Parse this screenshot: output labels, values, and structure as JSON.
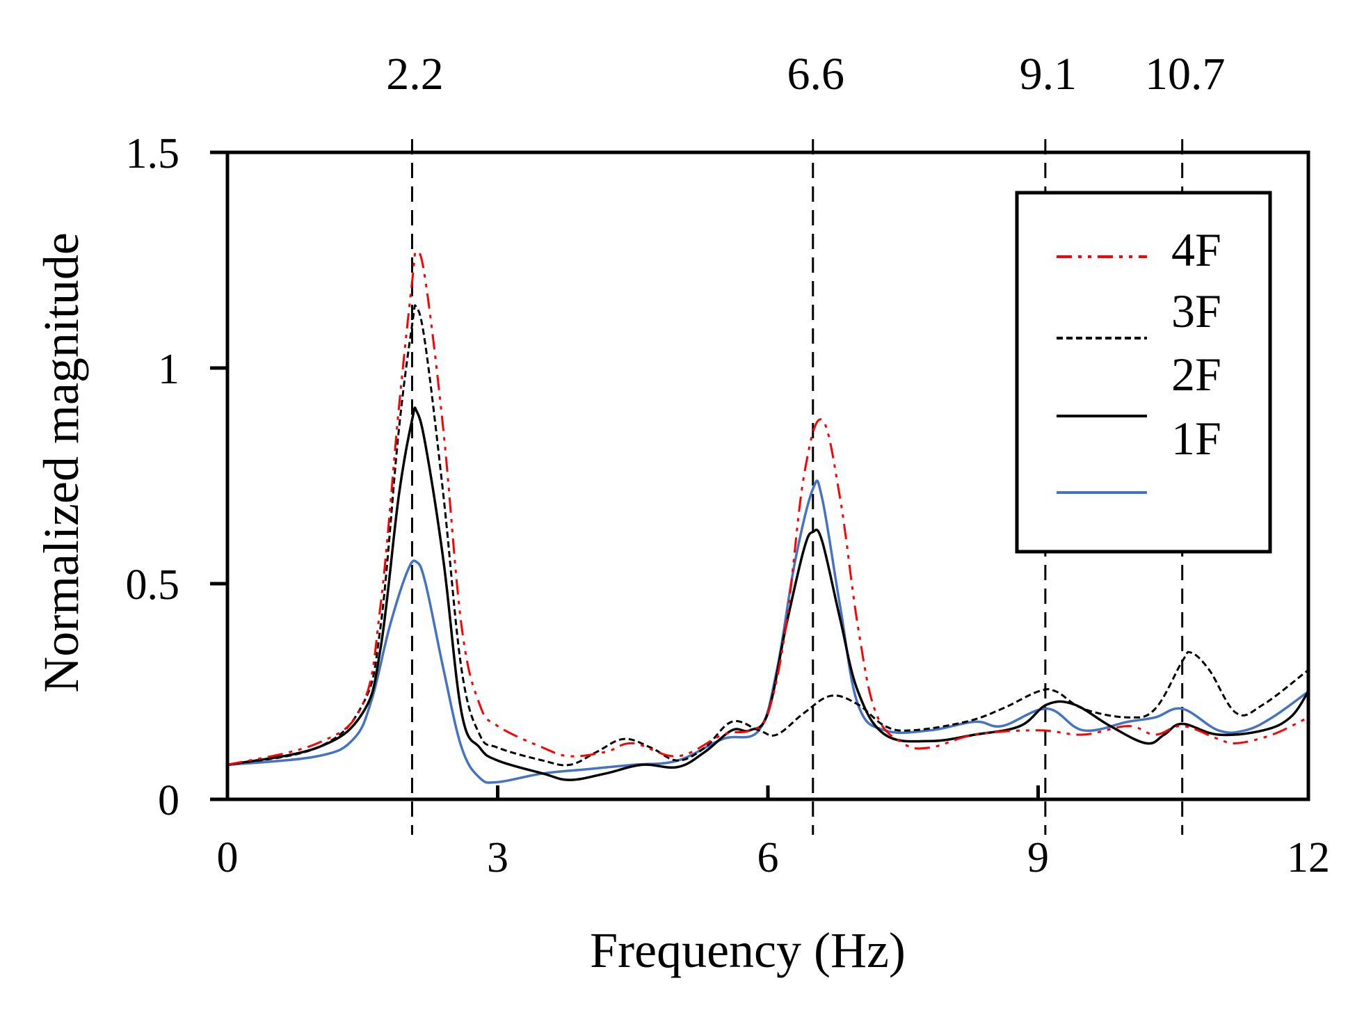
{
  "chart_data": {
    "type": "line",
    "title": "",
    "xlabel": "Frequency (Hz)",
    "ylabel": "Normalized magnitude",
    "xlim": [
      0,
      12
    ],
    "ylim": [
      0,
      1.5
    ],
    "xticks": [
      0,
      3,
      6,
      9,
      12
    ],
    "xtick_labels": [
      "0",
      "3",
      "6",
      "9",
      "12"
    ],
    "yticks": [
      0,
      0.5,
      1,
      1.5
    ],
    "ytick_labels": [
      "0",
      "0.5",
      "1",
      "1.5"
    ],
    "grid": false,
    "legend_position": "top-right",
    "reference_lines": [
      {
        "x": 2.05,
        "label": "2.2"
      },
      {
        "x": 6.5,
        "label": "6.6"
      },
      {
        "x": 9.08,
        "label": "9.1"
      },
      {
        "x": 10.6,
        "label": "10.7"
      }
    ],
    "series": [
      {
        "name": "4F",
        "color": "#ff0000",
        "dash": "dashdotdot",
        "x": [
          0,
          1,
          1.5,
          1.7,
          1.9,
          2.05,
          2.1,
          2.2,
          2.4,
          2.6,
          2.8,
          3,
          3.5,
          3.8,
          4.2,
          4.5,
          5,
          5.5,
          5.8,
          6,
          6.2,
          6.4,
          6.6,
          6.8,
          7,
          7.2,
          7.5,
          7.8,
          8.3,
          9,
          9.5,
          10,
          10.3,
          10.6,
          11,
          11.2,
          11.6,
          12
        ],
        "y": [
          0.08,
          0.13,
          0.22,
          0.45,
          0.9,
          1.2,
          1.27,
          1.2,
          0.85,
          0.4,
          0.22,
          0.17,
          0.12,
          0.1,
          0.11,
          0.13,
          0.1,
          0.15,
          0.16,
          0.2,
          0.4,
          0.75,
          0.88,
          0.7,
          0.4,
          0.2,
          0.13,
          0.12,
          0.15,
          0.16,
          0.15,
          0.17,
          0.15,
          0.17,
          0.14,
          0.13,
          0.15,
          0.19
        ]
      },
      {
        "name": "3F",
        "color": "#000000",
        "dash": "dashed",
        "x": [
          0,
          1,
          1.5,
          1.7,
          1.9,
          2.05,
          2.1,
          2.2,
          2.4,
          2.6,
          2.8,
          3,
          3.5,
          3.8,
          4.1,
          4.4,
          4.7,
          5,
          5.3,
          5.6,
          5.9,
          6.1,
          6.4,
          6.7,
          7,
          7.3,
          7.6,
          8.2,
          8.6,
          9,
          9.2,
          9.5,
          10,
          10.3,
          10.6,
          10.7,
          10.9,
          11.2,
          11.5,
          12
        ],
        "y": [
          0.08,
          0.12,
          0.22,
          0.4,
          0.85,
          1.1,
          1.14,
          1.05,
          0.7,
          0.3,
          0.15,
          0.12,
          0.09,
          0.08,
          0.11,
          0.14,
          0.12,
          0.09,
          0.12,
          0.18,
          0.16,
          0.15,
          0.2,
          0.24,
          0.22,
          0.17,
          0.16,
          0.18,
          0.21,
          0.25,
          0.25,
          0.21,
          0.19,
          0.21,
          0.32,
          0.34,
          0.3,
          0.2,
          0.22,
          0.3
        ]
      },
      {
        "name": "2F",
        "color": "#000000",
        "dash": "solid",
        "x": [
          0,
          1,
          1.5,
          1.7,
          1.9,
          2.05,
          2.1,
          2.2,
          2.4,
          2.6,
          2.8,
          3,
          3.5,
          3.8,
          4.2,
          4.6,
          5,
          5.3,
          5.6,
          5.8,
          6,
          6.2,
          6.4,
          6.5,
          6.6,
          6.8,
          7,
          7.3,
          7.8,
          8.3,
          8.8,
          9.1,
          9.4,
          9.8,
          10.2,
          10.4,
          10.6,
          11,
          11.5,
          11.8,
          12
        ],
        "y": [
          0.08,
          0.12,
          0.2,
          0.35,
          0.7,
          0.88,
          0.9,
          0.82,
          0.55,
          0.2,
          0.12,
          0.09,
          0.06,
          0.045,
          0.06,
          0.08,
          0.075,
          0.11,
          0.16,
          0.16,
          0.2,
          0.4,
          0.58,
          0.62,
          0.6,
          0.42,
          0.25,
          0.15,
          0.135,
          0.15,
          0.17,
          0.22,
          0.22,
          0.17,
          0.13,
          0.15,
          0.175,
          0.15,
          0.16,
          0.19,
          0.25
        ]
      },
      {
        "name": "1F",
        "color": "#4472c4",
        "dash": "solid",
        "x": [
          0,
          1,
          1.4,
          1.6,
          1.8,
          2,
          2.1,
          2.2,
          2.4,
          2.6,
          2.8,
          3,
          3.5,
          4,
          4.5,
          5,
          5.5,
          5.9,
          6.1,
          6.3,
          6.5,
          6.6,
          6.8,
          7,
          7.3,
          7.8,
          8.3,
          8.6,
          9.1,
          9.5,
          10,
          10.3,
          10.6,
          11,
          11.3,
          11.6,
          12
        ],
        "y": [
          0.08,
          0.1,
          0.14,
          0.23,
          0.4,
          0.53,
          0.55,
          0.5,
          0.3,
          0.12,
          0.05,
          0.04,
          0.06,
          0.07,
          0.08,
          0.09,
          0.14,
          0.16,
          0.3,
          0.55,
          0.72,
          0.7,
          0.45,
          0.22,
          0.16,
          0.16,
          0.18,
          0.17,
          0.21,
          0.16,
          0.18,
          0.19,
          0.21,
          0.16,
          0.16,
          0.19,
          0.25
        ]
      }
    ]
  }
}
